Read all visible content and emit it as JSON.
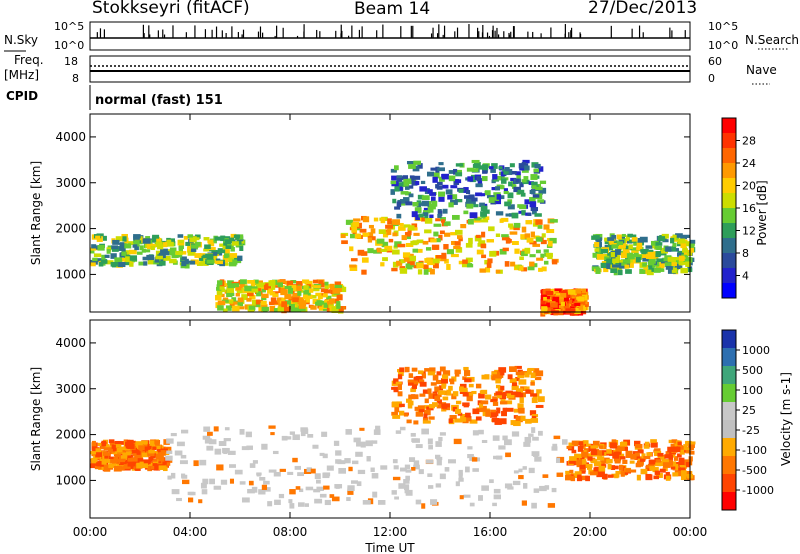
{
  "header": {
    "station": "Stokkseyri (fitACF)",
    "beam": "Beam 14",
    "date": "27/Dec/2013"
  },
  "noise_panel": {
    "left_label": "N.Sky",
    "left_ticks": [
      "10^5",
      "10^0"
    ],
    "right_ticks": [
      "10^5",
      "10^0"
    ],
    "right_label": "N.Search"
  },
  "freq_panel": {
    "left_label_top": "Freq.",
    "left_label_unit": "[MHz]",
    "left_ticks": [
      "18",
      "8"
    ],
    "right_ticks": [
      "60",
      "0"
    ],
    "right_label": "Nave"
  },
  "cpid_panel": {
    "label": "CPID",
    "mode": "normal (fast) 151"
  },
  "chart_data": [
    {
      "type": "heatmap",
      "quantity": "Power",
      "ylabel": "Slant Range [km]",
      "yticks": [
        1000,
        2000,
        3000,
        4000
      ],
      "ylim": [
        180,
        4500
      ],
      "xlim": [
        0,
        24
      ],
      "colorbar": {
        "label": "Power [dB]",
        "ticks": [
          "28",
          "24",
          "20",
          "16",
          "12",
          "8",
          "4"
        ],
        "colors": [
          "#ff0000",
          "#ff3300",
          "#ff6600",
          "#ff9900",
          "#ffcc00",
          "#ccdd00",
          "#66cc33",
          "#2e9e5a",
          "#2f6e8c",
          "#2a4a9c",
          "#2222cc",
          "#0000ff"
        ]
      },
      "echo_bands": [
        {
          "x": [
            0,
            6
          ],
          "range": [
            1250,
            1900
          ],
          "level": "medium"
        },
        {
          "x": [
            5,
            10
          ],
          "range": [
            250,
            900
          ],
          "level": "high"
        },
        {
          "x": [
            10,
            18.5
          ],
          "range": [
            1100,
            2300
          ],
          "level": "high"
        },
        {
          "x": [
            12,
            18
          ],
          "range": [
            2300,
            3500
          ],
          "level": "sparse"
        },
        {
          "x": [
            18,
            19.7
          ],
          "range": [
            200,
            700
          ],
          "level": "very high"
        },
        {
          "x": [
            20,
            24
          ],
          "range": [
            1100,
            1900
          ],
          "level": "medium"
        }
      ]
    },
    {
      "type": "heatmap",
      "quantity": "Velocity",
      "ylabel": "Slant Range [km]",
      "yticks": [
        1000,
        2000,
        3000,
        4000
      ],
      "ylim": [
        180,
        4500
      ],
      "xlim": [
        0,
        24
      ],
      "xticks": [
        "00:00",
        "04:00",
        "08:00",
        "12:00",
        "16:00",
        "20:00",
        "00:00"
      ],
      "xlabel": "Time UT",
      "colorbar": {
        "label": "Velocity [m s-1]",
        "ticks": [
          "1000",
          "500",
          "100",
          "25",
          "-25",
          "-100",
          "-500",
          "-1000"
        ],
        "colors": [
          "#1a33aa",
          "#2d6fb0",
          "#3fa67a",
          "#66cc33",
          "#c8c8c8",
          "#c0c0c0",
          "#ffaa00",
          "#ff7700",
          "#ff4400",
          "#ff0000"
        ]
      },
      "echo_bands": [
        {
          "x": [
            0,
            3
          ],
          "range": [
            1300,
            1900
          ],
          "velocity": "negative"
        },
        {
          "x": [
            3,
            19
          ],
          "range": [
            500,
            2200
          ],
          "velocity": "near zero"
        },
        {
          "x": [
            12,
            18
          ],
          "range": [
            2300,
            3500
          ],
          "velocity": "negative"
        },
        {
          "x": [
            19,
            24
          ],
          "range": [
            1100,
            1900
          ],
          "velocity": "negative"
        }
      ]
    }
  ]
}
